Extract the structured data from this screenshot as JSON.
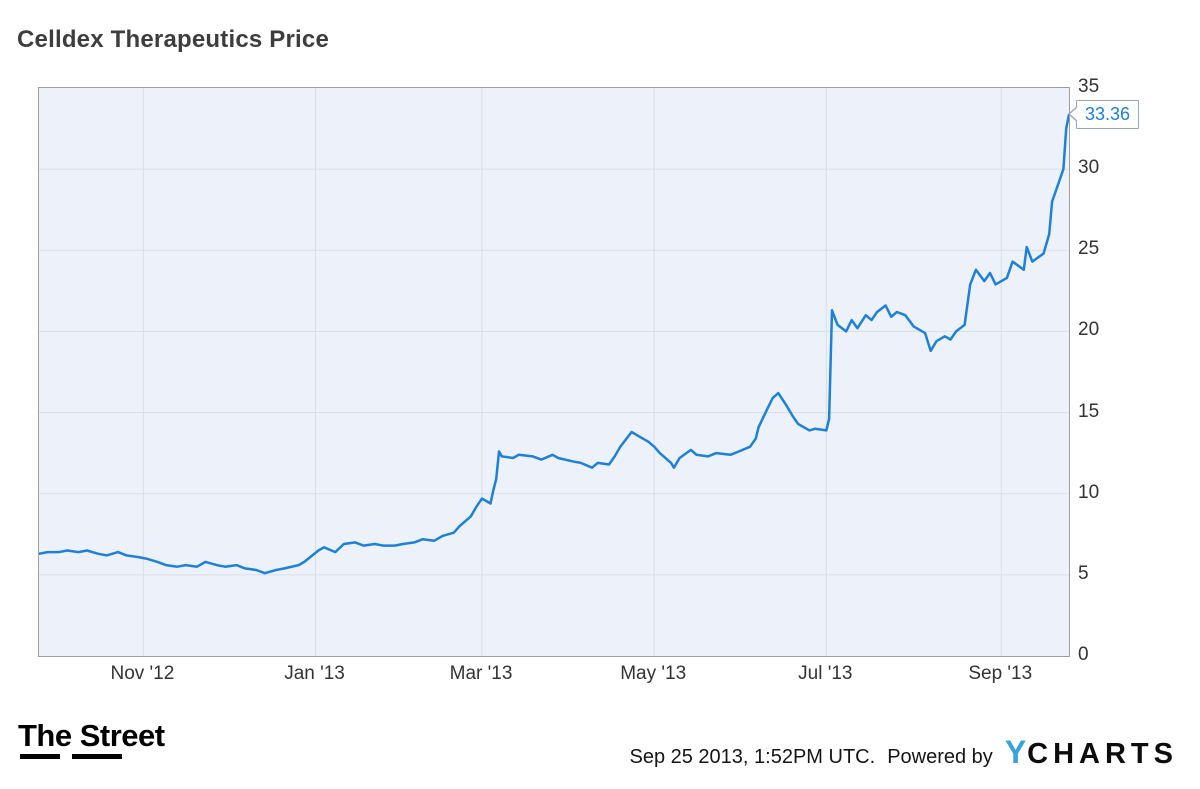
{
  "page": {
    "title": "Celldex Therapeutics Price"
  },
  "colors": {
    "line": "#1e80d9",
    "plot_bg": "#edf2fa",
    "grid": "#d8deeb",
    "frame": "#9e9e9e",
    "callout_border": "#97a6b4"
  },
  "footer": {
    "thestreet_logo": "The Street",
    "timestamp": "Sep 25 2013, 1:52PM UTC.",
    "powered_by": "Powered by",
    "ycharts_logo": {
      "y": "Y",
      "charts": "CHARTS"
    }
  },
  "chart_data": {
    "type": "line",
    "title": "Celldex Therapeutics Price",
    "series_name": "Celldex Therapeutics Price",
    "last_price_label": "33.36",
    "last_price": 33.36,
    "ylim": [
      0,
      35
    ],
    "yticks": [
      0,
      5,
      10,
      15,
      20,
      25,
      30,
      35
    ],
    "x_range": [
      "2012-09-25",
      "2013-09-25"
    ],
    "xticks": [
      {
        "date": "2012-11-01",
        "label": "Nov '12"
      },
      {
        "date": "2013-01-01",
        "label": "Jan '13"
      },
      {
        "date": "2013-03-01",
        "label": "Mar '13"
      },
      {
        "date": "2013-05-01",
        "label": "May '13"
      },
      {
        "date": "2013-07-01",
        "label": "Jul '13"
      },
      {
        "date": "2013-09-01",
        "label": "Sep '13"
      }
    ],
    "grid": true,
    "legend": "none",
    "points": [
      [
        "2012-09-25",
        6.3
      ],
      [
        "2012-09-28",
        6.4
      ],
      [
        "2012-10-02",
        6.4
      ],
      [
        "2012-10-05",
        6.5
      ],
      [
        "2012-10-09",
        6.4
      ],
      [
        "2012-10-12",
        6.5
      ],
      [
        "2012-10-16",
        6.3
      ],
      [
        "2012-10-19",
        6.2
      ],
      [
        "2012-10-23",
        6.4
      ],
      [
        "2012-10-26",
        6.2
      ],
      [
        "2012-10-30",
        6.1
      ],
      [
        "2012-11-02",
        6.0
      ],
      [
        "2012-11-06",
        5.8
      ],
      [
        "2012-11-09",
        5.6
      ],
      [
        "2012-11-13",
        5.5
      ],
      [
        "2012-11-16",
        5.6
      ],
      [
        "2012-11-20",
        5.5
      ],
      [
        "2012-11-23",
        5.8
      ],
      [
        "2012-11-27",
        5.6
      ],
      [
        "2012-11-30",
        5.5
      ],
      [
        "2012-12-04",
        5.6
      ],
      [
        "2012-12-07",
        5.4
      ],
      [
        "2012-12-11",
        5.3
      ],
      [
        "2012-12-14",
        5.1
      ],
      [
        "2012-12-18",
        5.3
      ],
      [
        "2012-12-21",
        5.4
      ],
      [
        "2012-12-26",
        5.6
      ],
      [
        "2012-12-28",
        5.8
      ],
      [
        "2013-01-02",
        6.5
      ],
      [
        "2013-01-04",
        6.7
      ],
      [
        "2013-01-08",
        6.4
      ],
      [
        "2013-01-11",
        6.9
      ],
      [
        "2013-01-15",
        7.0
      ],
      [
        "2013-01-18",
        6.8
      ],
      [
        "2013-01-22",
        6.9
      ],
      [
        "2013-01-25",
        6.8
      ],
      [
        "2013-01-29",
        6.8
      ],
      [
        "2013-02-01",
        6.9
      ],
      [
        "2013-02-05",
        7.0
      ],
      [
        "2013-02-08",
        7.2
      ],
      [
        "2013-02-12",
        7.1
      ],
      [
        "2013-02-15",
        7.4
      ],
      [
        "2013-02-19",
        7.6
      ],
      [
        "2013-02-21",
        8.0
      ],
      [
        "2013-02-25",
        8.6
      ],
      [
        "2013-02-27",
        9.2
      ],
      [
        "2013-03-01",
        9.7
      ],
      [
        "2013-03-04",
        9.4
      ],
      [
        "2013-03-05",
        10.2
      ],
      [
        "2013-03-06",
        10.9
      ],
      [
        "2013-03-07",
        12.6
      ],
      [
        "2013-03-08",
        12.3
      ],
      [
        "2013-03-12",
        12.2
      ],
      [
        "2013-03-14",
        12.4
      ],
      [
        "2013-03-19",
        12.3
      ],
      [
        "2013-03-22",
        12.1
      ],
      [
        "2013-03-26",
        12.4
      ],
      [
        "2013-03-28",
        12.2
      ],
      [
        "2013-04-02",
        12.0
      ],
      [
        "2013-04-05",
        11.9
      ],
      [
        "2013-04-09",
        11.6
      ],
      [
        "2013-04-11",
        11.9
      ],
      [
        "2013-04-15",
        11.8
      ],
      [
        "2013-04-17",
        12.3
      ],
      [
        "2013-04-19",
        12.9
      ],
      [
        "2013-04-23",
        13.8
      ],
      [
        "2013-04-25",
        13.6
      ],
      [
        "2013-04-29",
        13.2
      ],
      [
        "2013-05-01",
        12.9
      ],
      [
        "2013-05-03",
        12.5
      ],
      [
        "2013-05-07",
        11.9
      ],
      [
        "2013-05-08",
        11.6
      ],
      [
        "2013-05-10",
        12.2
      ],
      [
        "2013-05-14",
        12.7
      ],
      [
        "2013-05-16",
        12.4
      ],
      [
        "2013-05-20",
        12.3
      ],
      [
        "2013-05-23",
        12.5
      ],
      [
        "2013-05-28",
        12.4
      ],
      [
        "2013-05-31",
        12.6
      ],
      [
        "2013-06-04",
        12.9
      ],
      [
        "2013-06-06",
        13.4
      ],
      [
        "2013-06-07",
        14.1
      ],
      [
        "2013-06-10",
        15.2
      ],
      [
        "2013-06-12",
        15.9
      ],
      [
        "2013-06-14",
        16.2
      ],
      [
        "2013-06-17",
        15.4
      ],
      [
        "2013-06-19",
        14.8
      ],
      [
        "2013-06-21",
        14.3
      ],
      [
        "2013-06-25",
        13.9
      ],
      [
        "2013-06-27",
        14.0
      ],
      [
        "2013-07-01",
        13.9
      ],
      [
        "2013-07-02",
        14.6
      ],
      [
        "2013-07-03",
        21.3
      ],
      [
        "2013-07-05",
        20.4
      ],
      [
        "2013-07-08",
        20.0
      ],
      [
        "2013-07-10",
        20.7
      ],
      [
        "2013-07-12",
        20.2
      ],
      [
        "2013-07-15",
        21.0
      ],
      [
        "2013-07-17",
        20.7
      ],
      [
        "2013-07-19",
        21.2
      ],
      [
        "2013-07-22",
        21.6
      ],
      [
        "2013-07-24",
        20.9
      ],
      [
        "2013-07-26",
        21.2
      ],
      [
        "2013-07-29",
        21.0
      ],
      [
        "2013-08-01",
        20.3
      ],
      [
        "2013-08-05",
        19.9
      ],
      [
        "2013-08-07",
        18.8
      ],
      [
        "2013-08-09",
        19.4
      ],
      [
        "2013-08-12",
        19.7
      ],
      [
        "2013-08-14",
        19.5
      ],
      [
        "2013-08-16",
        20.0
      ],
      [
        "2013-08-19",
        20.4
      ],
      [
        "2013-08-21",
        22.9
      ],
      [
        "2013-08-23",
        23.8
      ],
      [
        "2013-08-26",
        23.1
      ],
      [
        "2013-08-28",
        23.6
      ],
      [
        "2013-08-30",
        22.9
      ],
      [
        "2013-09-03",
        23.3
      ],
      [
        "2013-09-05",
        24.3
      ],
      [
        "2013-09-09",
        23.8
      ],
      [
        "2013-09-10",
        25.2
      ],
      [
        "2013-09-12",
        24.3
      ],
      [
        "2013-09-16",
        24.8
      ],
      [
        "2013-09-18",
        26.0
      ],
      [
        "2013-09-19",
        28.0
      ],
      [
        "2013-09-23",
        30.0
      ],
      [
        "2013-09-24",
        32.5
      ],
      [
        "2013-09-25",
        33.36
      ]
    ]
  }
}
